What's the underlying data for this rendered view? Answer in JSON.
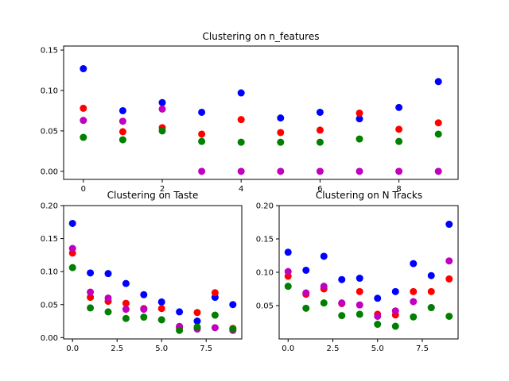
{
  "colors": {
    "blue": "#0000ff",
    "red": "#ff0000",
    "magenta": "#bf00bf",
    "green": "#008000"
  },
  "chart_data": [
    {
      "type": "scatter",
      "title": "Clustering on n_features",
      "xlim": [
        -0.5,
        9.5
      ],
      "ylim": [
        -0.01,
        0.155
      ],
      "xticks": [
        0,
        2,
        4,
        6,
        8
      ],
      "xtick_labels": [
        "0",
        "2",
        "4",
        "6",
        "8"
      ],
      "yticks": [
        0.0,
        0.05,
        0.1,
        0.15
      ],
      "ytick_labels": [
        "0.00",
        "0.05",
        "0.10",
        "0.15"
      ],
      "x": [
        0,
        1,
        2,
        3,
        4,
        5,
        6,
        7,
        8,
        9
      ],
      "series": [
        {
          "color": "#0000ff",
          "values": [
            0.127,
            0.075,
            0.085,
            0.073,
            0.097,
            0.066,
            0.073,
            0.065,
            0.079,
            0.111
          ]
        },
        {
          "color": "#ff0000",
          "values": [
            0.078,
            0.049,
            0.054,
            0.046,
            0.064,
            0.048,
            0.051,
            0.072,
            0.052,
            0.06
          ]
        },
        {
          "color": "#bf00bf",
          "values": [
            0.063,
            0.062,
            0.077,
            0.0,
            0.0,
            0.0,
            0.0,
            0.0,
            0.0,
            0.0
          ]
        },
        {
          "color": "#008000",
          "values": [
            0.042,
            0.039,
            0.05,
            0.037,
            0.036,
            0.036,
            0.036,
            0.04,
            0.037,
            0.046
          ]
        }
      ]
    },
    {
      "type": "scatter",
      "title": "Clustering on Taste",
      "xlim": [
        -0.5,
        9.5
      ],
      "ylim": [
        -0.002,
        0.2
      ],
      "xticks": [
        0,
        2.5,
        5,
        7.5
      ],
      "xtick_labels": [
        "0.0",
        "2.5",
        "5.0",
        "7.5"
      ],
      "yticks": [
        0.0,
        0.05,
        0.1,
        0.15,
        0.2
      ],
      "ytick_labels": [
        "0.00",
        "0.05",
        "0.10",
        "0.15",
        "0.20"
      ],
      "x": [
        0,
        1,
        2,
        3,
        4,
        5,
        6,
        7,
        8,
        9
      ],
      "series": [
        {
          "color": "#0000ff",
          "values": [
            0.173,
            0.098,
            0.097,
            0.082,
            0.065,
            0.054,
            0.039,
            0.025,
            0.061,
            0.05
          ]
        },
        {
          "color": "#ff0000",
          "values": [
            0.128,
            0.061,
            0.055,
            0.052,
            0.044,
            0.044,
            0.015,
            0.038,
            0.068,
            0.014
          ]
        },
        {
          "color": "#bf00bf",
          "values": [
            0.135,
            0.069,
            0.06,
            0.043,
            0.043,
            0.027,
            0.017,
            0.013,
            0.015,
            0.011
          ]
        },
        {
          "color": "#008000",
          "values": [
            0.106,
            0.045,
            0.039,
            0.029,
            0.031,
            0.027,
            0.011,
            0.016,
            0.034,
            0.013
          ]
        }
      ]
    },
    {
      "type": "scatter",
      "title": "Clustering on N Tracks",
      "xlim": [
        -0.5,
        9.5
      ],
      "ylim": [
        0.0,
        0.2
      ],
      "xticks": [
        0,
        2.5,
        5,
        7.5
      ],
      "xtick_labels": [
        "0.0",
        "2.5",
        "5.0",
        "7.5"
      ],
      "yticks": [
        0.05,
        0.1,
        0.15,
        0.2
      ],
      "ytick_labels": [
        "0.05",
        "0.10",
        "0.15",
        "0.20"
      ],
      "x": [
        0,
        1,
        2,
        3,
        4,
        5,
        6,
        7,
        8,
        9
      ],
      "series": [
        {
          "color": "#0000ff",
          "values": [
            0.13,
            0.103,
            0.124,
            0.089,
            0.091,
            0.061,
            0.071,
            0.113,
            0.095,
            0.172
          ]
        },
        {
          "color": "#ff0000",
          "values": [
            0.094,
            0.067,
            0.075,
            0.053,
            0.071,
            0.037,
            0.036,
            0.071,
            0.071,
            0.09
          ]
        },
        {
          "color": "#bf00bf",
          "values": [
            0.101,
            0.069,
            0.079,
            0.054,
            0.051,
            0.034,
            0.042,
            0.056,
            0.047,
            0.117
          ]
        },
        {
          "color": "#008000",
          "values": [
            0.079,
            0.046,
            0.054,
            0.035,
            0.037,
            0.022,
            0.019,
            0.033,
            0.047,
            0.034
          ]
        }
      ]
    }
  ]
}
